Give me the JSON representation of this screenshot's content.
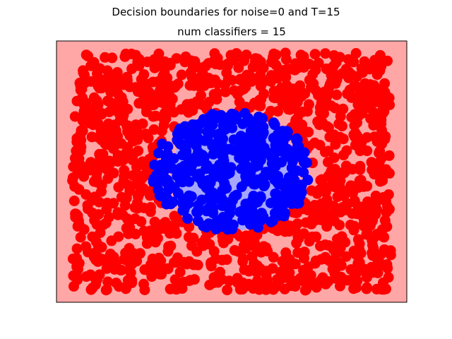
{
  "chart_data": {
    "type": "scatter",
    "suptitle": "Decision boundaries for noise=0 and T=15",
    "title": "num classifiers = 15",
    "xlabel": "",
    "ylabel": "",
    "xticks": "none",
    "yticks": "none",
    "grid": false,
    "legend": "none",
    "xlim": [
      -1.1,
      1.1
    ],
    "ylim": [
      -1.1,
      1.1
    ],
    "background": {
      "outer_region_color": "#ffa6a6",
      "inner_region_color": "#a6a6ff",
      "inner_region_shape": "circle",
      "inner_region_center": [
        0.0,
        0.0
      ],
      "inner_region_radius": 0.5
    },
    "series": [
      {
        "color": "#ff0000",
        "point_region": "square ring",
        "x_range": [
          -1.0,
          1.0
        ],
        "y_range": [
          -1.0,
          1.0
        ],
        "outside_radius": 0.5,
        "approx_count": 1200
      },
      {
        "color": "#0000ff",
        "point_region": "disk",
        "center": [
          0.0,
          0.0
        ],
        "radius": 0.5,
        "approx_count": 420
      }
    ]
  }
}
